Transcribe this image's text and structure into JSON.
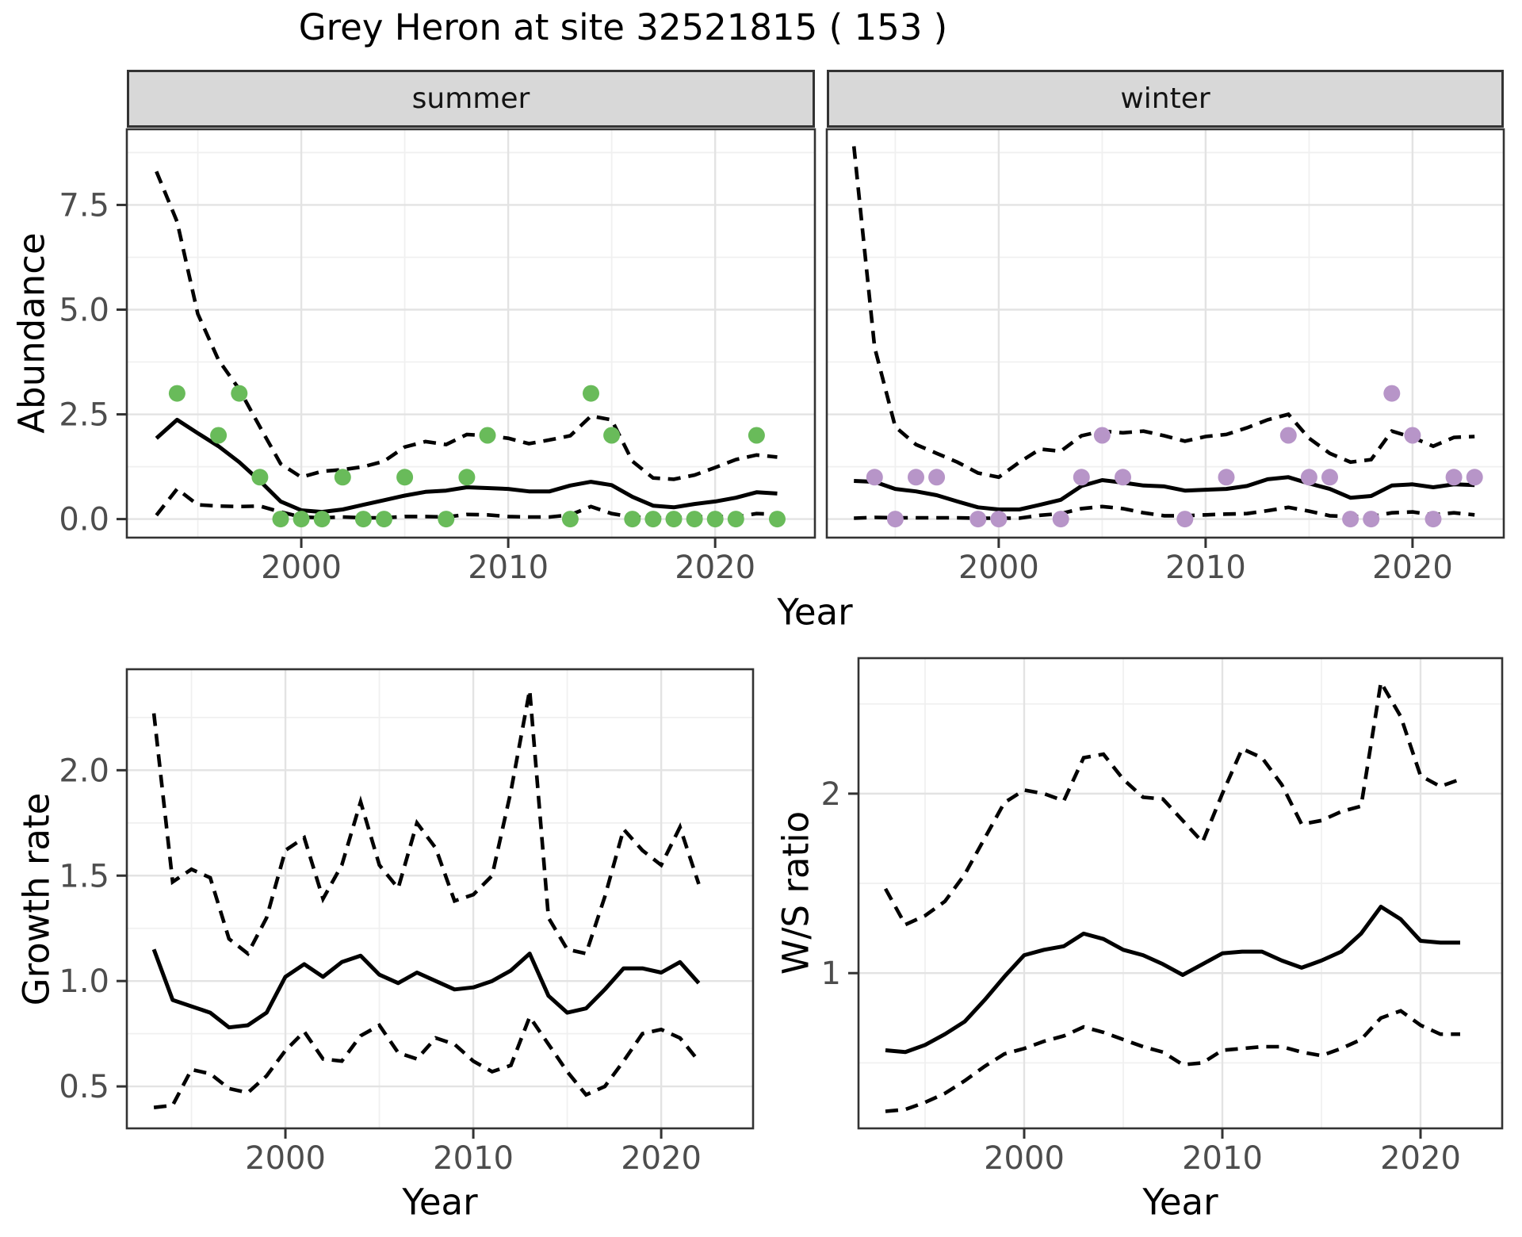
{
  "chart_data": {
    "figure_title": "Grey Heron at site 32521815 ( 153 )",
    "top_row": {
      "ylabel": "Abundance",
      "xlabel": "Year",
      "facets": [
        "summer",
        "winter"
      ]
    },
    "style": {
      "line_color": "#000000",
      "grid_major_color": "#e3e3e3",
      "grid_minor_color": "#f0f0f0",
      "panel_border_color": "#333333",
      "tick_color": "#333333",
      "axis_text_color": "#4d4d4d",
      "strip_bg": "#d8d8d8",
      "summer_point_color": "#69bb5a",
      "winter_point_color": "#b795c8"
    },
    "panels": [
      {
        "id": "abundance_summer",
        "type": "line",
        "facet_label": "summer",
        "ylabel": "Abundance",
        "xlabel": "Year",
        "legend": "solid = fitted mean, dashed = 95% interval, points = observed counts",
        "xlim": [
          1991.57,
          2024.82
        ],
        "ylim": [
          -0.443,
          9.307
        ],
        "x_ticks": [
          2000,
          2010,
          2020
        ],
        "x_tick_labels": [
          "2000",
          "2010",
          "2020"
        ],
        "x_minor": [
          1995,
          2005,
          2015
        ],
        "y_ticks": [
          0,
          2.5,
          5,
          7.5
        ],
        "y_tick_labels": [
          "0.0",
          "2.5",
          "5.0",
          "7.5"
        ],
        "y_minor": [
          1.25,
          3.75,
          6.25,
          8.75
        ],
        "grid": true,
        "years": [
          1993,
          1994,
          1995,
          1996,
          1997,
          1998,
          1999,
          2000,
          2001,
          2002,
          2003,
          2004,
          2005,
          2006,
          2007,
          2008,
          2009,
          2010,
          2011,
          2012,
          2013,
          2014,
          2015,
          2016,
          2017,
          2018,
          2019,
          2020,
          2021,
          2022,
          2023
        ],
        "fit": [
          1.93,
          2.37,
          2.05,
          1.74,
          1.36,
          0.91,
          0.42,
          0.21,
          0.17,
          0.23,
          0.34,
          0.45,
          0.56,
          0.65,
          0.68,
          0.76,
          0.74,
          0.72,
          0.66,
          0.66,
          0.8,
          0.89,
          0.81,
          0.53,
          0.32,
          0.28,
          0.36,
          0.42,
          0.51,
          0.64,
          0.61
        ],
        "upper": [
          8.3,
          7.1,
          4.9,
          3.8,
          3.1,
          2.2,
          1.32,
          1.0,
          1.14,
          1.18,
          1.25,
          1.38,
          1.72,
          1.85,
          1.78,
          2.02,
          1.99,
          1.93,
          1.8,
          1.89,
          1.99,
          2.46,
          2.37,
          1.38,
          0.98,
          0.95,
          1.05,
          1.23,
          1.42,
          1.53,
          1.48
        ],
        "lower": [
          0.09,
          0.72,
          0.34,
          0.31,
          0.3,
          0.31,
          0.17,
          0.05,
          0.03,
          0.05,
          0.03,
          0.03,
          0.06,
          0.06,
          0.05,
          0.11,
          0.1,
          0.06,
          0.05,
          0.05,
          0.1,
          0.3,
          0.13,
          0.05,
          0.03,
          0.03,
          0.05,
          0.06,
          0.05,
          0.13,
          0.11
        ],
        "obs_years": [
          1994,
          1996,
          1997,
          1998,
          1999,
          2000,
          2001,
          2002,
          2003,
          2004,
          2005,
          2007,
          2008,
          2009,
          2013,
          2014,
          2015,
          2016,
          2017,
          2018,
          2019,
          2020,
          2021,
          2022,
          2023
        ],
        "obs_values": [
          3,
          2,
          3,
          1,
          0,
          0,
          0,
          1,
          0,
          0,
          1,
          0,
          1,
          2,
          0,
          3,
          2,
          0,
          0,
          0,
          0,
          0,
          0,
          2,
          0
        ],
        "point_color": "#69bb5a"
      },
      {
        "id": "abundance_winter",
        "type": "line",
        "facet_label": "winter",
        "ylabel": "Abundance",
        "xlabel": "Year",
        "legend": "solid = fitted mean, dashed = 95% interval, points = observed counts",
        "xlim": [
          1991.69,
          2024.41
        ],
        "ylim": [
          -0.443,
          9.307
        ],
        "x_ticks": [
          2000,
          2010,
          2020
        ],
        "x_tick_labels": [
          "2000",
          "2010",
          "2020"
        ],
        "x_minor": [
          1995,
          2005,
          2015
        ],
        "y_ticks": [
          0,
          2.5,
          5,
          7.5
        ],
        "y_tick_labels": [
          "0.0",
          "2.5",
          "5.0",
          "7.5"
        ],
        "y_minor": [
          1.25,
          3.75,
          6.25,
          8.75
        ],
        "grid": true,
        "years": [
          1993,
          1994,
          1995,
          1996,
          1997,
          1998,
          1999,
          2000,
          2001,
          2002,
          2003,
          2004,
          2005,
          2006,
          2007,
          2008,
          2009,
          2010,
          2011,
          2012,
          2013,
          2014,
          2015,
          2016,
          2017,
          2018,
          2019,
          2020,
          2021,
          2022,
          2023
        ],
        "fit": [
          0.91,
          0.89,
          0.72,
          0.66,
          0.57,
          0.42,
          0.28,
          0.23,
          0.23,
          0.34,
          0.46,
          0.79,
          0.93,
          0.87,
          0.8,
          0.78,
          0.68,
          0.7,
          0.72,
          0.79,
          0.95,
          1.0,
          0.85,
          0.72,
          0.51,
          0.55,
          0.8,
          0.83,
          0.76,
          0.83,
          0.81
        ],
        "upper": [
          8.9,
          4.1,
          2.2,
          1.78,
          1.57,
          1.36,
          1.1,
          1.0,
          1.36,
          1.67,
          1.62,
          1.99,
          2.1,
          2.06,
          2.1,
          1.99,
          1.86,
          1.97,
          2.02,
          2.18,
          2.37,
          2.5,
          1.93,
          1.57,
          1.36,
          1.42,
          2.1,
          1.95,
          1.74,
          1.95,
          1.97
        ],
        "lower": [
          0.02,
          0.04,
          0.03,
          0.03,
          0.03,
          0.03,
          0.02,
          0.02,
          0.02,
          0.09,
          0.13,
          0.25,
          0.3,
          0.25,
          0.15,
          0.08,
          0.08,
          0.1,
          0.12,
          0.13,
          0.2,
          0.28,
          0.19,
          0.08,
          0.06,
          0.06,
          0.15,
          0.17,
          0.1,
          0.15,
          0.1
        ],
        "obs_years": [
          1994,
          1995,
          1996,
          1997,
          1999,
          2000,
          2003,
          2004,
          2005,
          2006,
          2009,
          2011,
          2014,
          2015,
          2016,
          2017,
          2018,
          2019,
          2020,
          2021,
          2022,
          2023
        ],
        "obs_values": [
          1,
          0,
          1,
          1,
          0,
          0,
          0,
          1,
          2,
          1,
          0,
          1,
          2,
          1,
          1,
          0,
          0,
          3,
          2,
          0,
          1,
          1
        ],
        "point_color": "#b795c8"
      },
      {
        "id": "growth_rate",
        "type": "line",
        "facet_label": null,
        "ylabel": "Growth rate",
        "xlabel": "Year",
        "legend": "solid = estimate, dashed = 95% interval",
        "xlim": [
          1991.56,
          2024.89
        ],
        "ylim": [
          0.301,
          2.479
        ],
        "x_ticks": [
          2000,
          2010,
          2020
        ],
        "x_tick_labels": [
          "2000",
          "2010",
          "2020"
        ],
        "x_minor": [
          1995,
          2005,
          2015
        ],
        "y_ticks": [
          0.5,
          1.0,
          1.5,
          2.0
        ],
        "y_tick_labels": [
          "0.5",
          "1.0",
          "1.5",
          "2.0"
        ],
        "y_minor": [
          0.75,
          1.25,
          1.75,
          2.25
        ],
        "grid": true,
        "years": [
          1993,
          1994,
          1995,
          1996,
          1997,
          1998,
          1999,
          2000,
          2001,
          2002,
          2003,
          2004,
          2005,
          2006,
          2007,
          2008,
          2009,
          2010,
          2011,
          2012,
          2013,
          2014,
          2015,
          2016,
          2017,
          2018,
          2019,
          2020,
          2021,
          2022
        ],
        "fit": [
          1.15,
          0.91,
          0.88,
          0.85,
          0.78,
          0.79,
          0.85,
          1.02,
          1.08,
          1.02,
          1.09,
          1.12,
          1.03,
          0.99,
          1.04,
          1.0,
          0.96,
          0.97,
          1.0,
          1.05,
          1.13,
          0.93,
          0.85,
          0.87,
          0.96,
          1.06,
          1.06,
          1.04,
          1.09,
          0.99
        ],
        "upper": [
          2.27,
          1.47,
          1.53,
          1.49,
          1.2,
          1.13,
          1.3,
          1.62,
          1.68,
          1.39,
          1.55,
          1.85,
          1.55,
          1.44,
          1.75,
          1.63,
          1.38,
          1.41,
          1.5,
          1.9,
          2.38,
          1.3,
          1.15,
          1.13,
          1.4,
          1.72,
          1.62,
          1.55,
          1.73,
          1.46
        ],
        "lower": [
          0.4,
          0.41,
          0.58,
          0.56,
          0.49,
          0.47,
          0.55,
          0.67,
          0.76,
          0.63,
          0.62,
          0.74,
          0.79,
          0.66,
          0.63,
          0.73,
          0.7,
          0.62,
          0.57,
          0.6,
          0.83,
          0.7,
          0.57,
          0.46,
          0.5,
          0.62,
          0.75,
          0.77,
          0.73,
          0.62
        ],
        "obs_years": [],
        "obs_values": [],
        "point_color": null
      },
      {
        "id": "ws_ratio",
        "type": "line",
        "facet_label": null,
        "ylabel": "W/S ratio",
        "xlabel": "Year",
        "legend": "solid = estimate, dashed = 95% interval",
        "xlim": [
          1991.64,
          2024.12
        ],
        "ylim": [
          0.135,
          2.755
        ],
        "x_ticks": [
          2000,
          2010,
          2020
        ],
        "x_tick_labels": [
          "2000",
          "2010",
          "2020"
        ],
        "x_minor": [
          1995,
          2005,
          2015
        ],
        "y_ticks": [
          1,
          2
        ],
        "y_tick_labels": [
          "1",
          "2"
        ],
        "y_minor": [
          0.5,
          1.5,
          2.5
        ],
        "grid": true,
        "years": [
          1993,
          1994,
          1995,
          1996,
          1997,
          1998,
          1999,
          2000,
          2001,
          2002,
          2003,
          2004,
          2005,
          2006,
          2007,
          2008,
          2009,
          2010,
          2011,
          2012,
          2013,
          2014,
          2015,
          2016,
          2017,
          2018,
          2019,
          2020,
          2021,
          2022
        ],
        "fit": [
          0.57,
          0.56,
          0.6,
          0.66,
          0.73,
          0.85,
          0.98,
          1.1,
          1.13,
          1.15,
          1.22,
          1.19,
          1.13,
          1.1,
          1.05,
          0.99,
          1.05,
          1.11,
          1.12,
          1.12,
          1.07,
          1.03,
          1.07,
          1.12,
          1.22,
          1.37,
          1.3,
          1.18,
          1.17,
          1.17
        ],
        "upper": [
          1.47,
          1.27,
          1.32,
          1.4,
          1.55,
          1.75,
          1.95,
          2.02,
          2.0,
          1.96,
          2.2,
          2.22,
          2.08,
          1.98,
          1.97,
          1.85,
          1.73,
          2.0,
          2.25,
          2.2,
          2.05,
          1.83,
          1.85,
          1.9,
          1.93,
          2.62,
          2.43,
          2.1,
          2.04,
          2.08
        ],
        "lower": [
          0.23,
          0.24,
          0.28,
          0.33,
          0.4,
          0.48,
          0.55,
          0.58,
          0.62,
          0.65,
          0.7,
          0.67,
          0.63,
          0.59,
          0.56,
          0.49,
          0.5,
          0.57,
          0.58,
          0.59,
          0.59,
          0.56,
          0.54,
          0.58,
          0.63,
          0.75,
          0.79,
          0.71,
          0.66,
          0.66
        ],
        "obs_years": [],
        "obs_values": [],
        "point_color": null
      }
    ]
  }
}
